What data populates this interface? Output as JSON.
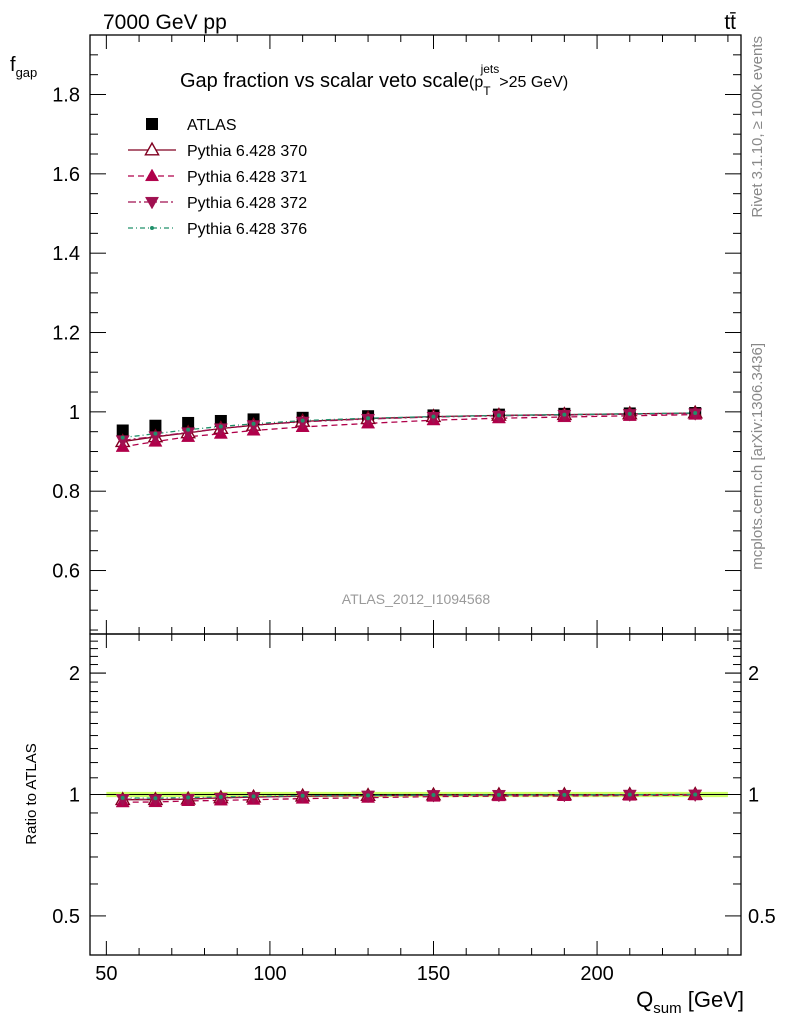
{
  "header": {
    "energy_label": "7000 GeV pp",
    "process_label": "tt̄"
  },
  "side_labels": {
    "rivet": "Rivet 3.1.10, ≥ 100k events",
    "source": "mcplots.cern.ch [arXiv:1306.3436]"
  },
  "analysis_id": "ATLAS_2012_I1094568",
  "colors": {
    "atlas": "#000000",
    "p370": "#800020",
    "p371": "#b0004a",
    "p372": "#a01050",
    "p376": "#20906a",
    "band": "#ccff66"
  },
  "chart_data": [
    {
      "panel": "main",
      "type": "line",
      "title": "Gap fraction vs scalar veto scale",
      "title_suffix": {
        "base": "(p",
        "sub": "T",
        "sup": "jets",
        "tail": ">25 GeV)"
      },
      "ylabel": {
        "base": "f",
        "sub": "gap"
      },
      "xlim": [
        45,
        244
      ],
      "ylim": [
        0.44,
        1.95
      ],
      "yticks": [
        0.6,
        0.8,
        1,
        1.2,
        1.4,
        1.6,
        1.8
      ],
      "ytick_labels": [
        "0.6",
        "0.8",
        "1",
        "1.2",
        "1.4",
        "1.6",
        "1.8"
      ],
      "legend_position": "top-left",
      "x": [
        55,
        65,
        75,
        85,
        95,
        110,
        130,
        150,
        170,
        190,
        210,
        230
      ],
      "series": [
        {
          "name": "ATLAS",
          "marker": "square",
          "values": [
            0.953,
            0.965,
            0.972,
            0.977,
            0.981,
            0.985,
            0.989,
            0.991,
            0.993,
            0.995,
            0.996,
            0.997
          ]
        },
        {
          "name": "Pythia 6.428 370",
          "marker": "triangle-up-open",
          "dash": "",
          "values": [
            0.925,
            0.937,
            0.947,
            0.958,
            0.966,
            0.976,
            0.983,
            0.988,
            0.991,
            0.993,
            0.995,
            0.997
          ]
        },
        {
          "name": "Pythia 6.428 371",
          "marker": "triangle-up",
          "dash": "6,4",
          "values": [
            0.912,
            0.925,
            0.937,
            0.945,
            0.953,
            0.962,
            0.971,
            0.979,
            0.984,
            0.987,
            0.99,
            0.993
          ]
        },
        {
          "name": "Pythia 6.428 372",
          "marker": "triangle-down",
          "dash": "8,3,2,3",
          "values": [
            0.928,
            0.938,
            0.948,
            0.958,
            0.966,
            0.975,
            0.982,
            0.987,
            0.99,
            0.992,
            0.994,
            0.996
          ]
        },
        {
          "name": "Pythia 6.428 376",
          "marker": "dot",
          "dash": "5,3,1,3",
          "values": [
            0.935,
            0.945,
            0.955,
            0.963,
            0.97,
            0.978,
            0.984,
            0.988,
            0.991,
            0.993,
            0.995,
            0.997
          ]
        }
      ]
    },
    {
      "panel": "ratio",
      "type": "line",
      "ylabel": "Ratio to ATLAS",
      "xlabel": {
        "base": "Q",
        "sub": "sum",
        "tail": " [GeV]"
      },
      "scale": "log",
      "xlim": [
        45,
        244
      ],
      "ylim": [
        0.4,
        2.5
      ],
      "yticks": [
        0.5,
        1,
        2
      ],
      "ytick_labels": [
        "0.5",
        "1",
        "2"
      ],
      "xticks": [
        50,
        100,
        150,
        200
      ],
      "xtick_labels": [
        "50",
        "100",
        "150",
        "200"
      ],
      "band": [
        0.985,
        1.015
      ],
      "x": [
        55,
        65,
        75,
        85,
        95,
        110,
        130,
        150,
        170,
        190,
        210,
        230
      ],
      "series": [
        {
          "name": "Pythia 6.428 370",
          "marker": "triangle-up-open",
          "dash": "",
          "values": [
            0.971,
            0.971,
            0.974,
            0.981,
            0.985,
            0.991,
            0.994,
            0.997,
            0.998,
            0.998,
            0.999,
            1.0
          ]
        },
        {
          "name": "Pythia 6.428 371",
          "marker": "triangle-up",
          "dash": "6,4",
          "values": [
            0.957,
            0.958,
            0.964,
            0.967,
            0.971,
            0.977,
            0.982,
            0.988,
            0.991,
            0.992,
            0.994,
            0.996
          ]
        },
        {
          "name": "Pythia 6.428 372",
          "marker": "triangle-down",
          "dash": "8,3,2,3",
          "values": [
            0.974,
            0.972,
            0.975,
            0.981,
            0.985,
            0.99,
            0.993,
            0.996,
            0.997,
            0.997,
            0.998,
            0.999
          ]
        },
        {
          "name": "Pythia 6.428 376",
          "marker": "dot",
          "dash": "5,3,1,3",
          "values": [
            0.981,
            0.979,
            0.983,
            0.986,
            0.989,
            0.993,
            0.995,
            0.997,
            0.998,
            0.998,
            0.999,
            1.0
          ]
        }
      ]
    }
  ]
}
